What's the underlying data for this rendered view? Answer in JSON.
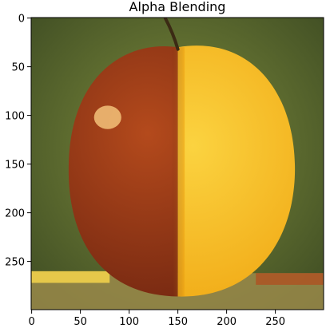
{
  "chart_data": {
    "type": "image",
    "title": "Alpha Blending",
    "xlabel": "",
    "ylabel": "",
    "image_size": [
      300,
      300
    ],
    "xlim": [
      -0.5,
      299.5
    ],
    "ylim": [
      299.5,
      -0.5
    ],
    "x_ticks": [
      0,
      50,
      100,
      150,
      200,
      250
    ],
    "y_ticks": [
      0,
      50,
      100,
      150,
      200,
      250
    ],
    "grid": false,
    "content": "left half apple, right half orange, blended at the vertical center seam",
    "colors": {
      "background": "#7e8c3c",
      "background_dark": "#3c4a22",
      "apple": "#b44a1c",
      "apple_dark": "#6e2410",
      "orange": "#f0a612",
      "orange_light": "#fbd340",
      "pencil": "#e6c84a",
      "table": "#9a8a4a"
    }
  }
}
